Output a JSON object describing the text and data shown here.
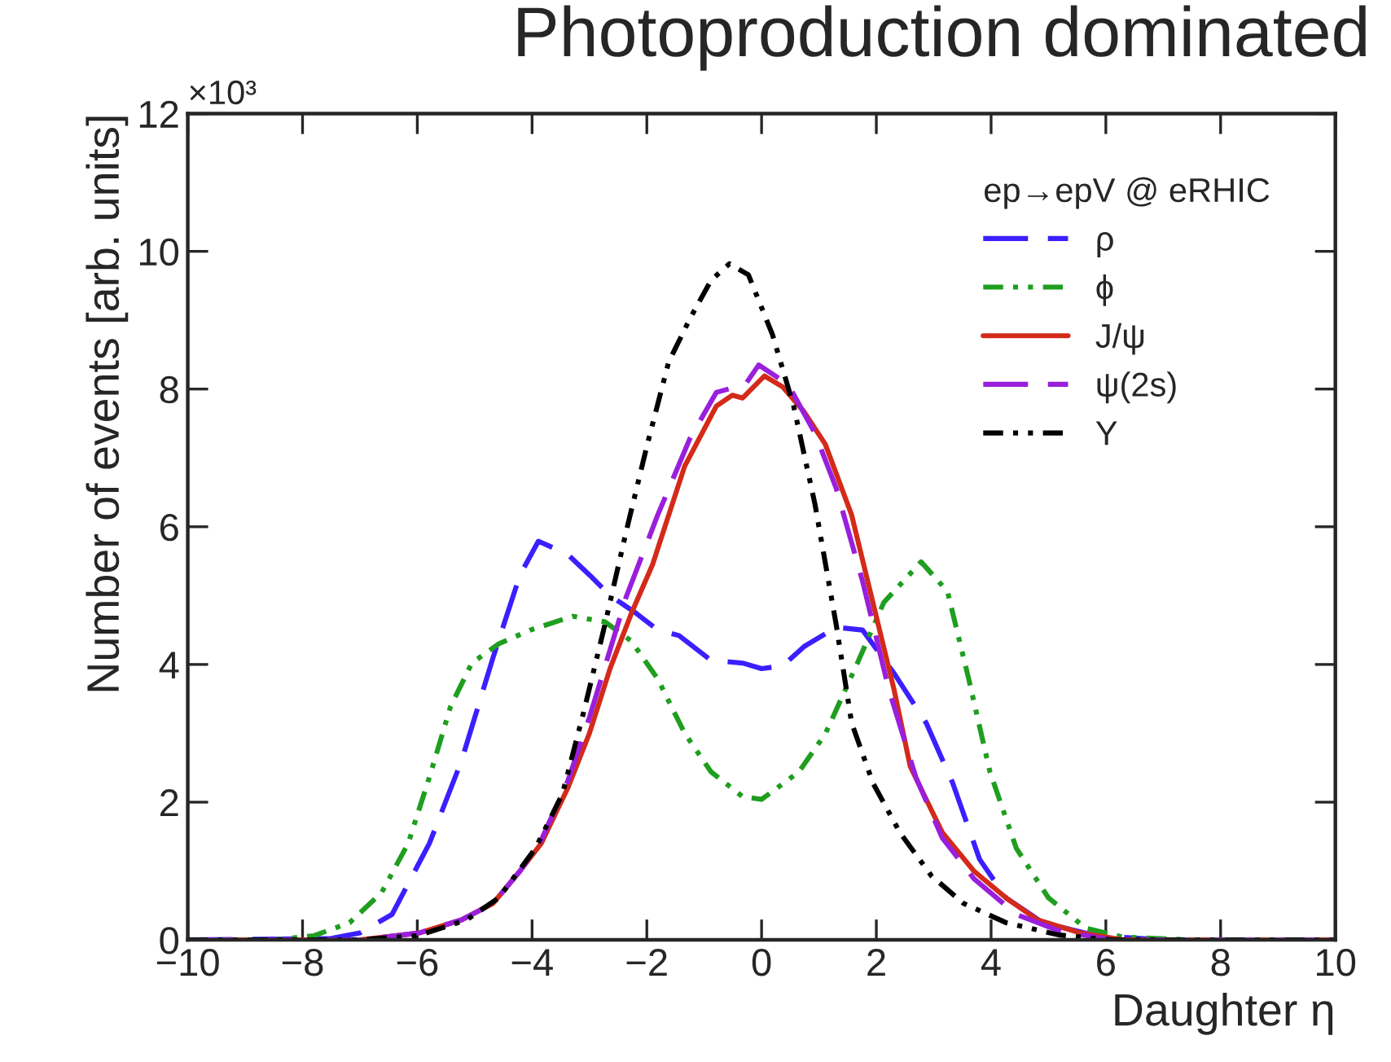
{
  "chart_data": {
    "type": "line",
    "title": "Photoproduction dominated",
    "xlabel": "Daughter η",
    "ylabel": "Number of events [arb. units]",
    "legend_title": "ep→epV @ eRHIC",
    "annotations": [
      "×10³"
    ],
    "xlim": [
      -10,
      10
    ],
    "xticks": [
      {
        "value": -10,
        "label": "−10"
      },
      {
        "value": -8,
        "label": "−8"
      },
      {
        "value": -6,
        "label": "−6"
      },
      {
        "value": -4,
        "label": "−4"
      },
      {
        "value": -2,
        "label": "−2"
      },
      0,
      2,
      4,
      6,
      8,
      10
    ],
    "ylim": [
      0,
      12
    ],
    "yticks": [
      0,
      2,
      4,
      6,
      8,
      10,
      12
    ],
    "grid": false,
    "legend": "top right",
    "marker": "none",
    "series": [
      {
        "name": "ρ",
        "color": "#3b1fff",
        "line_style": "dashed",
        "x": [
          -10,
          -7.5,
          -7,
          -6.44,
          -5.79,
          -5.23,
          -4.68,
          -4.21,
          -3.89,
          -3.38,
          -3.0,
          -2.64,
          -2.18,
          -1.81,
          -1.44,
          -0.88,
          -0.33,
          0,
          0.37,
          0.74,
          1.3,
          1.76,
          2.31,
          2.87,
          3.33,
          3.8,
          4.26,
          4.9,
          5.83,
          7,
          10
        ],
        "values": [
          0,
          0.02,
          0.1,
          0.37,
          1.4,
          2.6,
          4.1,
          5.3,
          5.79,
          5.6,
          5.3,
          5.0,
          4.74,
          4.5,
          4.42,
          4.06,
          4.02,
          3.94,
          3.98,
          4.26,
          4.54,
          4.5,
          3.87,
          3.15,
          2.28,
          1.17,
          0.61,
          0.25,
          0.06,
          0,
          0
        ]
      },
      {
        "name": "ϕ",
        "color": "#1f9e1f",
        "line_style": "dotted",
        "x": [
          -10,
          -8.5,
          -7.8,
          -7.18,
          -6.62,
          -6.16,
          -5.79,
          -5.42,
          -5.05,
          -4.58,
          -4.03,
          -3.29,
          -2.73,
          -2.27,
          -1.81,
          -1.34,
          -0.88,
          -0.33,
          0,
          0.65,
          1.11,
          1.67,
          2.13,
          2.78,
          3.24,
          3.61,
          3.98,
          4.44,
          5.0,
          5.65,
          6.3,
          7.5,
          10
        ],
        "values": [
          0,
          0,
          0.06,
          0.25,
          0.69,
          1.4,
          2.36,
          3.39,
          4.02,
          4.3,
          4.5,
          4.7,
          4.62,
          4.34,
          3.79,
          3.0,
          2.44,
          2.08,
          2.04,
          2.44,
          2.99,
          4.02,
          4.9,
          5.49,
          5.06,
          3.79,
          2.44,
          1.33,
          0.61,
          0.17,
          0.04,
          0,
          0
        ]
      },
      {
        "name": "J/ψ",
        "color": "#d42a1a",
        "line_style": "solid",
        "x": [
          -10,
          -7,
          -5.97,
          -5.23,
          -4.68,
          -4.21,
          -3.84,
          -3.38,
          -3.0,
          -2.64,
          -2.27,
          -1.9,
          -1.34,
          -0.79,
          -0.51,
          -0.33,
          0.05,
          0.37,
          0.74,
          1.11,
          1.57,
          1.94,
          2.31,
          2.59,
          3.15,
          3.7,
          4.26,
          4.81,
          5.56,
          6.3,
          10
        ],
        "values": [
          0,
          0,
          0.1,
          0.29,
          0.53,
          1.0,
          1.4,
          2.2,
          3.0,
          3.94,
          4.74,
          5.45,
          6.88,
          7.75,
          7.91,
          7.87,
          8.19,
          8.03,
          7.67,
          7.2,
          6.17,
          4.9,
          3.63,
          2.52,
          1.56,
          1.0,
          0.61,
          0.29,
          0.1,
          0,
          0
        ]
      },
      {
        "name": "ψ(2s)",
        "color": "#9a1fdc",
        "line_style": "dashed",
        "x": [
          -10,
          -7,
          -5.97,
          -5.23,
          -4.68,
          -4.21,
          -3.84,
          -3.38,
          -3.0,
          -2.36,
          -1.81,
          -1.25,
          -0.79,
          -0.28,
          -0.05,
          0.46,
          0.93,
          1.3,
          1.76,
          2.22,
          2.69,
          3.15,
          3.7,
          4.44,
          5.19,
          6.1,
          10
        ],
        "values": [
          0,
          0,
          0.1,
          0.29,
          0.53,
          1.0,
          1.45,
          2.3,
          3.23,
          4.98,
          6.17,
          7.28,
          7.95,
          8.07,
          8.35,
          8.07,
          7.36,
          6.56,
          5.21,
          3.63,
          2.36,
          1.48,
          0.89,
          0.37,
          0.13,
          0,
          0
        ]
      },
      {
        "name": "Υ",
        "color": "#000000",
        "line_style": "dotted",
        "x": [
          -10,
          -7,
          -6,
          -5.14,
          -4.58,
          -3.94,
          -3.47,
          -3.1,
          -2.73,
          -2.36,
          -1.99,
          -1.62,
          -1.25,
          -0.88,
          -0.56,
          -0.23,
          0.19,
          0.56,
          0.93,
          1.3,
          1.57,
          1.94,
          2.41,
          2.96,
          3.52,
          4.26,
          5.19,
          6.1,
          10
        ],
        "values": [
          0,
          0,
          0.06,
          0.29,
          0.61,
          1.33,
          2.12,
          3.31,
          4.58,
          5.93,
          7.2,
          8.39,
          9.02,
          9.58,
          9.82,
          9.66,
          8.79,
          7.75,
          6.33,
          4.58,
          3.15,
          2.28,
          1.56,
          0.93,
          0.53,
          0.25,
          0.07,
          0,
          0
        ]
      }
    ]
  }
}
